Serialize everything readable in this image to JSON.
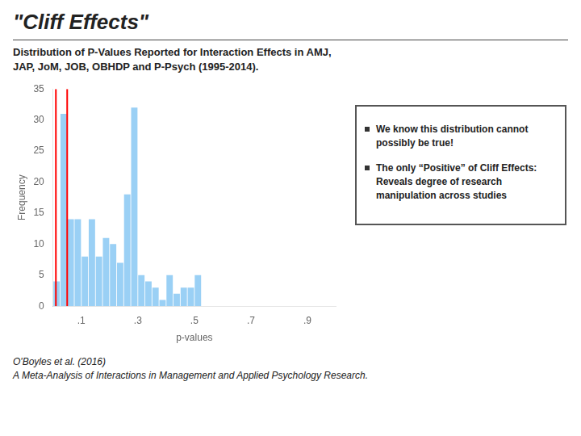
{
  "chart_data": {
    "type": "histogram",
    "title": "\"Cliff Effects\"",
    "subtitle": [
      "Distribution of P-Values Reported for Interaction Effects in AMJ,",
      "JAP, JoM, JOB, OBHDP and P-Psych (1995-2014)."
    ],
    "bins": [
      0.0,
      0.025,
      0.05,
      0.075,
      0.1,
      0.125,
      0.15,
      0.175,
      0.2,
      0.225,
      0.25,
      0.275,
      0.3,
      0.325,
      0.35,
      0.375,
      0.4,
      0.425,
      0.45,
      0.475,
      0.5,
      0.525,
      0.55,
      0.575,
      0.6,
      0.625,
      0.65,
      0.675,
      0.7,
      0.725,
      0.75,
      0.775,
      0.8,
      0.825,
      0.85,
      0.875,
      0.9,
      0.925,
      0.95,
      0.975,
      1.0
    ],
    "values": [
      4,
      31,
      14,
      14,
      8,
      14,
      8,
      11,
      10,
      7,
      18,
      32,
      5,
      4,
      3,
      1,
      5,
      2,
      3,
      3,
      5,
      0,
      0,
      0,
      0,
      0,
      0,
      0,
      0,
      0,
      0,
      0,
      0,
      0,
      0,
      0,
      0,
      0,
      0,
      0
    ],
    "xlabel": "p-values",
    "ylabel": "Frequency",
    "xlim": [
      0.0,
      1.0
    ],
    "xticks": [
      {
        "value": 0.1,
        "label": ".1"
      },
      {
        "value": 0.3,
        "label": ".3"
      },
      {
        "value": 0.5,
        "label": ".5"
      },
      {
        "value": 0.7,
        "label": ".7"
      },
      {
        "value": 0.9,
        "label": ".9"
      }
    ],
    "ylim": [
      0,
      35
    ],
    "yticks": [
      0,
      5,
      10,
      15,
      20,
      25,
      30,
      35
    ],
    "grid": false,
    "reference_lines": {
      "x": [
        0.01,
        0.05
      ],
      "color": "#ff0000"
    },
    "annotations": [
      "We know this distribution cannot\npossibly be true!",
      "The only “Positive” of Cliff Effects:\nReveals degree of research\nmanipulation across studies"
    ],
    "footer": [
      "O'Boyles et al.  (2016)",
      "A Meta-Analysis of Interactions in Management and Applied Psychology Research."
    ]
  }
}
